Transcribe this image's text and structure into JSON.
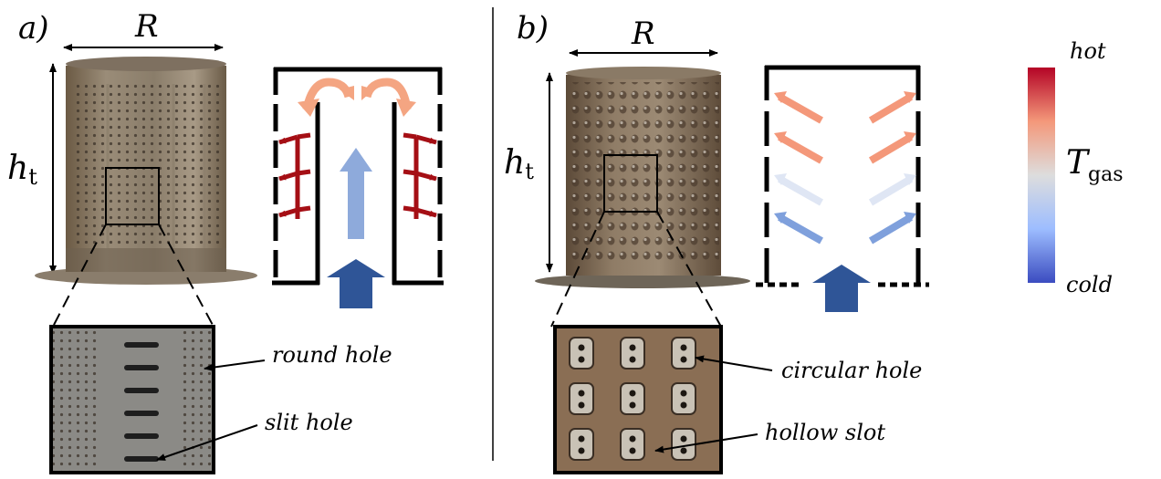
{
  "panel_a": {
    "label": "a)",
    "radius_label": "R",
    "height_label_main": "h",
    "height_label_sub": "t",
    "callouts": {
      "round_hole": "round hole",
      "slit_hole": "slit hole"
    }
  },
  "panel_b": {
    "label": "b)",
    "radius_label": "R",
    "height_label_main": "h",
    "height_label_sub": "t",
    "callouts": {
      "circular_hole": "circular hole",
      "hollow_slot": "hollow slot"
    }
  },
  "colorbar": {
    "top_label": "hot",
    "bottom_label": "cold",
    "symbol_main": "T",
    "symbol_sub": "gas",
    "colors": {
      "hot": "#b40426",
      "warm": "#f4987a",
      "neutral": "#dddddd",
      "cool": "#9dbdff",
      "cold": "#3b4cc0"
    }
  },
  "arrow_colors": {
    "inlet": "#2f5597",
    "core_flow": "#8eaadb",
    "turn_flow": "#f4a582",
    "wall_flow": "#a50f15"
  }
}
